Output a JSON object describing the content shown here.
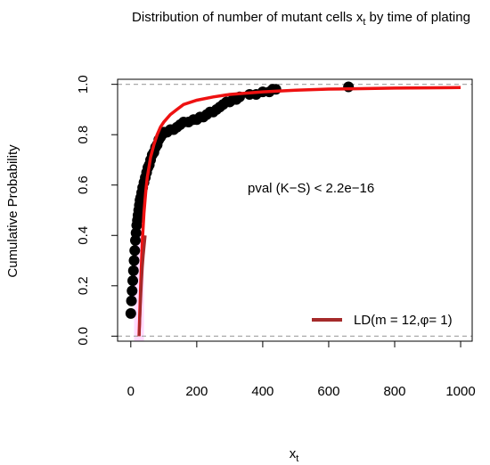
{
  "chart_data": {
    "type": "scatter",
    "title": {
      "text": "Distribution of number of mutant cells x",
      "sub": "t",
      "suffix": " by time of plating"
    },
    "xlabel": {
      "text": "x",
      "sub": "t"
    },
    "ylabel": "Cumulative Probability",
    "xlim": [
      -40,
      1035
    ],
    "ylim": [
      -0.02,
      1.02
    ],
    "x_ticks": [
      0,
      200,
      400,
      600,
      800,
      1000
    ],
    "x_tick_labels": [
      "0",
      "200",
      "400",
      "600",
      "800",
      "1000"
    ],
    "y_ticks": [
      0.0,
      0.2,
      0.4,
      0.6,
      0.8,
      1.0
    ],
    "y_tick_labels": [
      "0.0",
      "0.2",
      "0.4",
      "0.6",
      "0.8",
      "1.0"
    ],
    "reference_lines_y": [
      0.0,
      1.0
    ],
    "annotation": "pval (K−S) < 2.2e−16",
    "legend": {
      "label": "LD(m = 12,φ= 1)",
      "position": "bottom-right",
      "color": "#a52a2a"
    },
    "colors": {
      "points": "#000000",
      "fitted_cdf": "#ee1111",
      "ld_curve": "#a52a2a",
      "band": "#ffccff",
      "reference": "#aaaaaa"
    },
    "series": [
      {
        "kind": "empirical-points",
        "x": [
          0,
          2,
          4,
          6,
          8,
          10,
          12,
          14,
          16,
          18,
          20,
          22,
          24,
          26,
          28,
          30,
          33,
          36,
          40,
          44,
          48,
          52,
          56,
          60,
          65,
          70,
          75,
          80,
          85,
          90,
          95,
          100,
          110,
          120,
          130,
          140,
          150,
          160,
          175,
          190,
          200,
          210,
          220,
          230,
          240,
          250,
          260,
          270,
          280,
          290,
          300,
          310,
          320,
          330,
          360,
          380,
          400,
          420,
          430,
          440,
          660
        ],
        "y": [
          0.09,
          0.14,
          0.18,
          0.22,
          0.26,
          0.3,
          0.34,
          0.38,
          0.41,
          0.44,
          0.46,
          0.48,
          0.5,
          0.52,
          0.54,
          0.55,
          0.57,
          0.59,
          0.61,
          0.63,
          0.65,
          0.67,
          0.68,
          0.7,
          0.72,
          0.73,
          0.75,
          0.76,
          0.78,
          0.79,
          0.8,
          0.81,
          0.81,
          0.82,
          0.82,
          0.83,
          0.84,
          0.85,
          0.85,
          0.86,
          0.86,
          0.87,
          0.87,
          0.88,
          0.89,
          0.89,
          0.9,
          0.91,
          0.92,
          0.93,
          0.93,
          0.94,
          0.94,
          0.95,
          0.96,
          0.96,
          0.97,
          0.97,
          0.98,
          0.98,
          0.99
        ]
      },
      {
        "kind": "fitted-cdf",
        "x": [
          25,
          30,
          35,
          40,
          45,
          50,
          55,
          60,
          70,
          80,
          90,
          100,
          120,
          140,
          160,
          200,
          250,
          300,
          400,
          500,
          600,
          700,
          800,
          900,
          1000
        ],
        "y": [
          0.0,
          0.2,
          0.38,
          0.49,
          0.57,
          0.63,
          0.67,
          0.71,
          0.76,
          0.8,
          0.83,
          0.85,
          0.88,
          0.9,
          0.92,
          0.937,
          0.95,
          0.96,
          0.97,
          0.977,
          0.981,
          0.983,
          0.985,
          0.986,
          0.987
        ]
      },
      {
        "kind": "ld-curve",
        "x": [
          25,
          27,
          29,
          31,
          33,
          35,
          38,
          41,
          44
        ],
        "y": [
          0.0,
          0.05,
          0.11,
          0.17,
          0.22,
          0.27,
          0.32,
          0.36,
          0.4
        ]
      }
    ]
  }
}
